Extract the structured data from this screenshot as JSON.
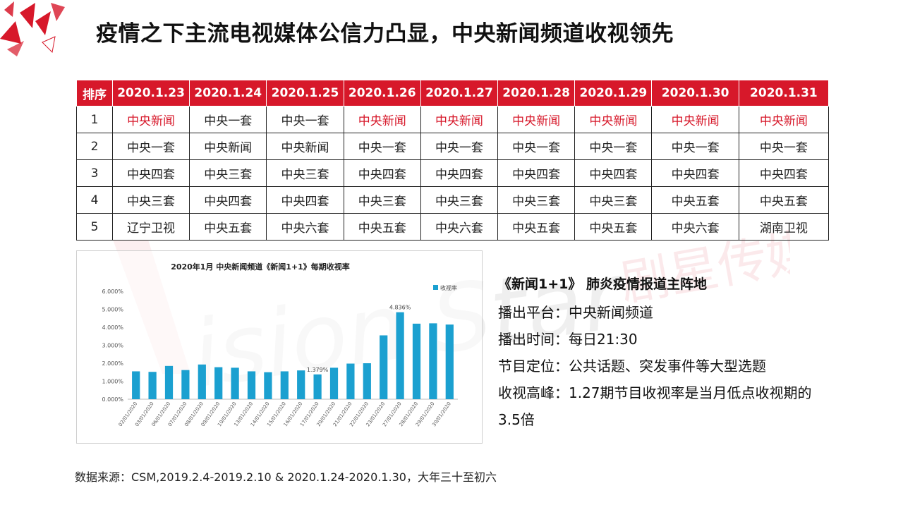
{
  "title": "疫情之下主流电视媒体公信力凸显，中央新闻频道收视领先",
  "watermark": {
    "logo_text": "Vision Star",
    "cn_text": "剧星传媒"
  },
  "colors": {
    "accent_red": "#d7182a",
    "bar_blue": "#1ba0d0"
  },
  "table": {
    "header": [
      "排序",
      "2020.1.23",
      "2020.1.24",
      "2020.1.25",
      "2020.1.26",
      "2020.1.27",
      "2020.1.28",
      "2020.1.29",
      "2020.1.30",
      "2020.1.31"
    ],
    "rows": [
      {
        "rank": "1",
        "cells": [
          "中央新闻",
          "中央一套",
          "中央一套",
          "中央新闻",
          "中央新闻",
          "中央新闻",
          "中央新闻",
          "中央新闻",
          "中央新闻"
        ],
        "highlight": [
          true,
          false,
          false,
          true,
          true,
          true,
          true,
          true,
          true
        ]
      },
      {
        "rank": "2",
        "cells": [
          "中央一套",
          "中央新闻",
          "中央新闻",
          "中央一套",
          "中央一套",
          "中央一套",
          "中央一套",
          "中央一套",
          "中央一套"
        ],
        "highlight": [
          false,
          false,
          false,
          false,
          false,
          false,
          false,
          false,
          false
        ]
      },
      {
        "rank": "3",
        "cells": [
          "中央四套",
          "中央三套",
          "中央三套",
          "中央四套",
          "中央四套",
          "中央四套",
          "中央四套",
          "中央四套",
          "中央四套"
        ],
        "highlight": [
          false,
          false,
          false,
          false,
          false,
          false,
          false,
          false,
          false
        ]
      },
      {
        "rank": "4",
        "cells": [
          "中央三套",
          "中央四套",
          "中央四套",
          "中央三套",
          "中央三套",
          "中央三套",
          "中央三套",
          "中央五套",
          "中央五套"
        ],
        "highlight": [
          false,
          false,
          false,
          false,
          false,
          false,
          false,
          false,
          false
        ]
      },
      {
        "rank": "5",
        "cells": [
          "辽宁卫视",
          "中央五套",
          "中央六套",
          "中央五套",
          "中央六套",
          "中央五套",
          "中央五套",
          "中央六套",
          "湖南卫视"
        ],
        "highlight": [
          false,
          false,
          false,
          false,
          false,
          false,
          false,
          false,
          false
        ]
      }
    ]
  },
  "chart_data": {
    "type": "bar",
    "title": "2020年1月  中央新闻频道《新闻1+1》每期收视率",
    "legend": "收视率",
    "legend_position": "top-right",
    "categories": [
      "02/01/2020",
      "03/01/2020",
      "06/01/2020",
      "07/01/2020",
      "08/01/2020",
      "09/01/2020",
      "10/01/2020",
      "13/01/2020",
      "14/01/2020",
      "15/01/2020",
      "16/01/2020",
      "17/01/2020",
      "20/01/2020",
      "21/01/2020",
      "22/01/2020",
      "23/01/2020",
      "27/01/2020",
      "28/01/2020",
      "29/01/2020",
      "30/01/2020"
    ],
    "series": [
      {
        "name": "收视率",
        "values": [
          1.55,
          1.52,
          1.85,
          1.62,
          1.93,
          1.78,
          1.75,
          1.55,
          1.5,
          1.55,
          1.6,
          1.379,
          1.75,
          1.98,
          2.0,
          3.55,
          4.836,
          4.2,
          4.22,
          4.15
        ]
      }
    ],
    "ylim": [
      0,
      6
    ],
    "yticks": [
      "0.000%",
      "1.000%",
      "2.000%",
      "3.000%",
      "4.000%",
      "5.000%",
      "6.000%"
    ],
    "data_labels": [
      {
        "index": 11,
        "text": "1.379%"
      },
      {
        "index": 16,
        "text": "4.836%"
      }
    ],
    "grid": false
  },
  "info": {
    "head": "《新闻1+1》  肺炎疫情报道主阵地",
    "lines": [
      "播出平台：中央新闻频道",
      "播出时间：每日21:30",
      "节目定位：公共话题、突发事件等大型选题",
      "收视高峰：1.27期节目收视率是当月低点收视期的3.5倍"
    ]
  },
  "source": "数据来源：CSM,2019.2.4-2019.2.10 & 2020.1.24-2020.1.30，大年三十至初六"
}
